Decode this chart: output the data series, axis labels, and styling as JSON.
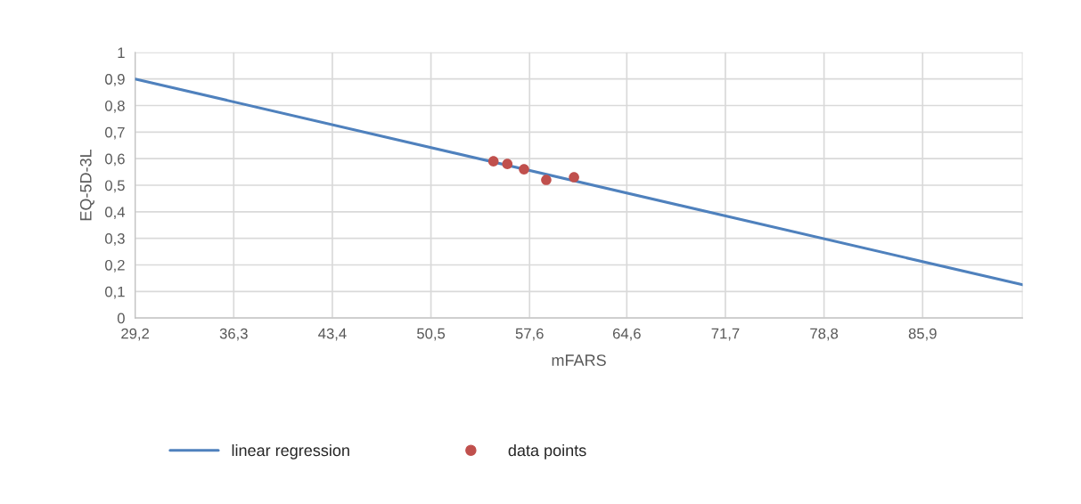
{
  "chart_data": {
    "type": "scatter",
    "xlabel": "mFARS",
    "ylabel": "EQ-5D-3L",
    "series": [
      {
        "name": "linear regression",
        "type": "line",
        "color": "#4f81bd",
        "marker": "none",
        "x": [
          29.2,
          93.1
        ],
        "values": [
          0.9,
          0.125
        ]
      },
      {
        "name": "data points",
        "color": "#c0504d",
        "marker": "circle",
        "x": [
          55.0,
          56.0,
          57.2,
          58.8,
          60.8
        ],
        "values": [
          0.59,
          0.58,
          0.56,
          0.52,
          0.53
        ]
      }
    ],
    "xlim": [
      29.2,
      93.1
    ],
    "xticks": [
      {
        "value": 29.2,
        "label": "29,2"
      },
      {
        "value": 36.3,
        "label": "36,3"
      },
      {
        "value": 43.4,
        "label": "43,4"
      },
      {
        "value": 50.5,
        "label": "50,5"
      },
      {
        "value": 57.6,
        "label": "57,6"
      },
      {
        "value": 64.6,
        "label": "64,6"
      },
      {
        "value": 71.7,
        "label": "71,7"
      },
      {
        "value": 78.8,
        "label": "78,8"
      },
      {
        "value": 85.9,
        "label": "85,9"
      },
      {
        "value": 93.1,
        "label": null
      }
    ],
    "ylim": [
      0,
      1
    ],
    "yticks": [
      0,
      {
        "value": 0.1,
        "label": "0,1"
      },
      {
        "value": 0.2,
        "label": "0,2"
      },
      {
        "value": 0.3,
        "label": "0,3"
      },
      {
        "value": 0.4,
        "label": "0,4"
      },
      {
        "value": 0.5,
        "label": "0,5"
      },
      {
        "value": 0.6,
        "label": "0,6"
      },
      {
        "value": 0.7,
        "label": "0,7"
      },
      {
        "value": 0.8,
        "label": "0,8"
      },
      {
        "value": 0.9,
        "label": "0,9"
      },
      1
    ],
    "grid": true,
    "legend": "bottom"
  }
}
